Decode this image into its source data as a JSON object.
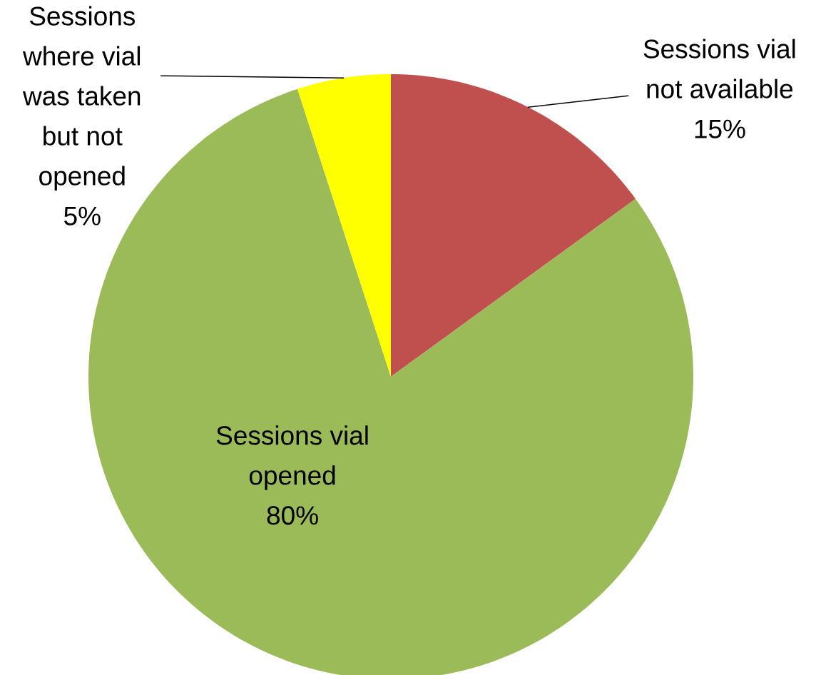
{
  "chart_data": {
    "type": "pie",
    "categories": [
      "Sessions vial not available",
      "Sessions vial opened",
      "Sessions where vial was taken but not opened"
    ],
    "values": [
      15,
      80,
      5
    ],
    "colors": [
      "#c0504d",
      "#9bbb59",
      "#ffff00"
    ],
    "value_labels": [
      "15%",
      "80%",
      "5%"
    ]
  }
}
